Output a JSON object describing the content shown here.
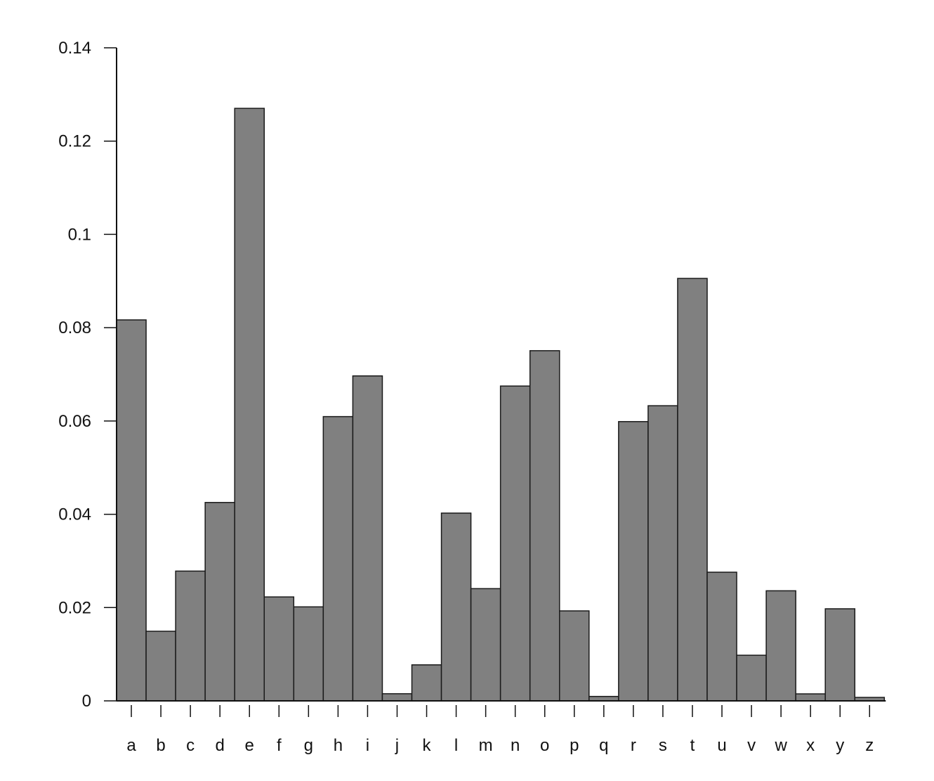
{
  "chart_data": {
    "type": "bar",
    "title": "",
    "xlabel": "",
    "ylabel": "",
    "ylim": [
      0,
      0.14
    ],
    "grid": false,
    "y_ticks": [
      "0",
      "0.02",
      "0.04",
      "0.06",
      "0.08",
      "0.1",
      "0.12",
      "0.14"
    ],
    "y_tick_values": [
      0,
      0.02,
      0.04,
      0.06,
      0.08,
      0.1,
      0.12,
      0.14
    ],
    "categories": [
      "a",
      "b",
      "c",
      "d",
      "e",
      "f",
      "g",
      "h",
      "i",
      "j",
      "k",
      "l",
      "m",
      "n",
      "o",
      "p",
      "q",
      "r",
      "s",
      "t",
      "u",
      "v",
      "w",
      "x",
      "y",
      "z"
    ],
    "values": [
      0.08167,
      0.01492,
      0.02782,
      0.04253,
      0.12702,
      0.02228,
      0.02015,
      0.06094,
      0.06966,
      0.00153,
      0.00772,
      0.04025,
      0.02406,
      0.06749,
      0.07507,
      0.01929,
      0.00095,
      0.05987,
      0.06327,
      0.09056,
      0.02758,
      0.00978,
      0.0236,
      0.0015,
      0.01974,
      0.00074
    ],
    "colors": {
      "bar": "#808080",
      "bar_stroke": "#1a1a1a",
      "axis": "#111111"
    }
  }
}
